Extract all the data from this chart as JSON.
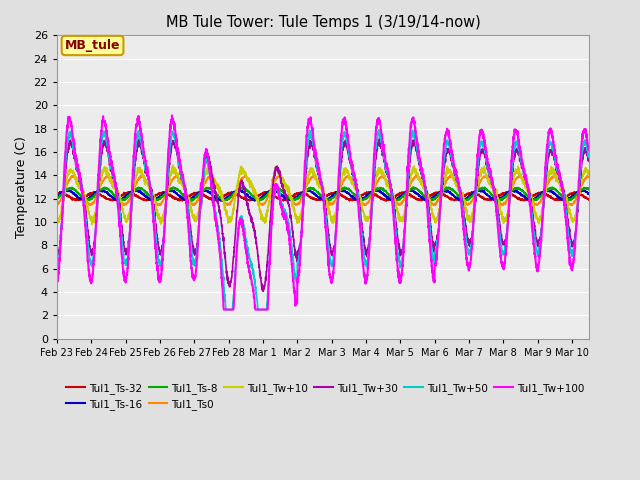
{
  "title": "MB Tule Tower: Tule Temps 1 (3/19/14-now)",
  "ylabel": "Temperature (C)",
  "ylim": [
    0,
    26
  ],
  "yticks": [
    0,
    2,
    4,
    6,
    8,
    10,
    12,
    14,
    16,
    18,
    20,
    22,
    24,
    26
  ],
  "xtick_labels": [
    "Feb 23",
    "Feb 24",
    "Feb 25",
    "Feb 26",
    "Feb 27",
    "Feb 28",
    "Mar 1",
    "Mar 2",
    "Mar 3",
    "Mar 4",
    "Mar 5",
    "Mar 6",
    "Mar 7",
    "Mar 8",
    "Mar 9",
    "Mar 10"
  ],
  "background_color": "#e0e0e0",
  "plot_bg_color": "#ececec",
  "grid_color": "#ffffff",
  "legend_label": "MB_tule",
  "legend_bg": "#ffff99",
  "legend_border": "#cc9900",
  "series": [
    {
      "label": "Tul1_Ts-32",
      "color": "#cc0000",
      "lw": 1.2,
      "amp": 0.3,
      "base": 12.2,
      "depth": 32
    },
    {
      "label": "Tul1_Ts-16",
      "color": "#0000cc",
      "lw": 1.2,
      "amp": 0.4,
      "base": 12.3,
      "depth": 16
    },
    {
      "label": "Tul1_Ts-8",
      "color": "#00aa00",
      "lw": 1.2,
      "amp": 0.5,
      "base": 12.4,
      "depth": 8
    },
    {
      "label": "Tul1_Ts0",
      "color": "#ff8800",
      "lw": 1.2,
      "amp": 1.2,
      "base": 12.7,
      "depth": 2
    },
    {
      "label": "Tul1_Tw+10",
      "color": "#cccc00",
      "lw": 1.2,
      "amp": 2.5,
      "base": 12.5,
      "depth": -1
    },
    {
      "label": "Tul1_Tw+30",
      "color": "#aa00aa",
      "lw": 1.2,
      "amp": 5.5,
      "base": 12.5,
      "depth": -2
    },
    {
      "label": "Tul1_Tw+50",
      "color": "#00cccc",
      "lw": 1.2,
      "amp": 6.5,
      "base": 12.5,
      "depth": -3
    },
    {
      "label": "Tul1_Tw+100",
      "color": "#ff00ff",
      "lw": 1.5,
      "amp": 8.0,
      "base": 12.5,
      "depth": -4
    }
  ],
  "num_days": 15.5,
  "pts": 3000
}
